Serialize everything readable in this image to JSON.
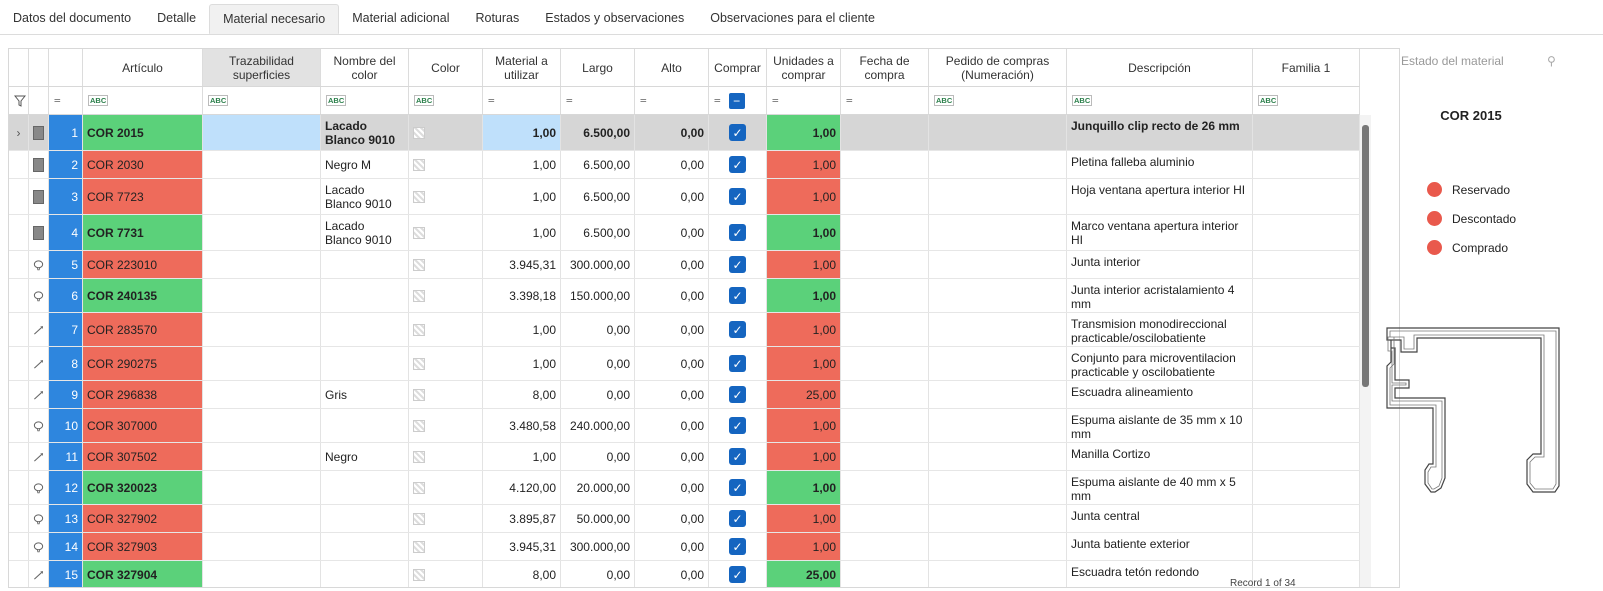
{
  "tabs": [
    "Datos del documento",
    "Detalle",
    "Material necesario",
    "Material adicional",
    "Roturas",
    "Estados y observaciones",
    "Observaciones para el cliente"
  ],
  "columns": {
    "articulo": "Artículo",
    "trazabilidad": "Trazabilidad superficies",
    "nombre_color": "Nombre del color",
    "color": "Color",
    "material": "Material a utilizar",
    "largo": "Largo",
    "alto": "Alto",
    "comprar": "Comprar",
    "unidades": "Unidades a comprar",
    "fecha": "Fecha de compra",
    "pedido": "Pedido de compras (Numeración)",
    "descripcion": "Descripción",
    "familia": "Familia 1"
  },
  "filter": {
    "eq": "=",
    "abc": "ABC"
  },
  "rows": [
    {
      "n": "1",
      "art": "COR 2015",
      "nc": "Lacado Blanco 9010",
      "mat": "1,00",
      "largo": "6.500,00",
      "alto": "0,00",
      "uni": "1,00",
      "desc": "Junquillo clip recto de 26 mm",
      "st": "green",
      "icon": "square"
    },
    {
      "n": "2",
      "art": "COR 2030",
      "nc": "Negro M",
      "mat": "1,00",
      "largo": "6.500,00",
      "alto": "0,00",
      "uni": "1,00",
      "desc": "Pletina falleba aluminio",
      "st": "red",
      "icon": "square"
    },
    {
      "n": "3",
      "art": "COR 7723",
      "nc": "Lacado Blanco 9010",
      "mat": "1,00",
      "largo": "6.500,00",
      "alto": "0,00",
      "uni": "1,00",
      "desc": "Hoja ventana apertura interior HI",
      "st": "red",
      "icon": "square"
    },
    {
      "n": "4",
      "art": "COR 7731",
      "nc": "Lacado Blanco 9010",
      "mat": "1,00",
      "largo": "6.500,00",
      "alto": "0,00",
      "uni": "1,00",
      "desc": "Marco ventana apertura interior HI",
      "st": "green",
      "icon": "square"
    },
    {
      "n": "5",
      "art": "COR 223010",
      "nc": "",
      "mat": "3.945,31",
      "largo": "300.000,00",
      "alto": "0,00",
      "uni": "1,00",
      "desc": "Junta interior",
      "st": "red",
      "icon": "ring"
    },
    {
      "n": "6",
      "art": "COR 240135",
      "nc": "",
      "mat": "3.398,18",
      "largo": "150.000,00",
      "alto": "0,00",
      "uni": "1,00",
      "desc": "Junta interior acristalamiento 4 mm",
      "st": "green",
      "icon": "ring"
    },
    {
      "n": "7",
      "art": "COR 283570",
      "nc": "",
      "mat": "1,00",
      "largo": "0,00",
      "alto": "0,00",
      "uni": "1,00",
      "desc": "Transmision monodireccional practicable/oscilobatiente",
      "st": "red",
      "icon": "tool"
    },
    {
      "n": "8",
      "art": "COR 290275",
      "nc": "",
      "mat": "1,00",
      "largo": "0,00",
      "alto": "0,00",
      "uni": "1,00",
      "desc": "Conjunto para microventilacion practicable y oscilobatiente",
      "st": "red",
      "icon": "tool"
    },
    {
      "n": "9",
      "art": "COR 296838",
      "nc": "Gris",
      "mat": "8,00",
      "largo": "0,00",
      "alto": "0,00",
      "uni": "25,00",
      "desc": "Escuadra alineamiento",
      "st": "red",
      "icon": "tool"
    },
    {
      "n": "10",
      "art": "COR 307000",
      "nc": "",
      "mat": "3.480,58",
      "largo": "240.000,00",
      "alto": "0,00",
      "uni": "1,00",
      "desc": "Espuma aislante de 35 mm x 10 mm",
      "st": "red",
      "icon": "ring"
    },
    {
      "n": "11",
      "art": "COR 307502",
      "nc": "Negro",
      "mat": "1,00",
      "largo": "0,00",
      "alto": "0,00",
      "uni": "1,00",
      "desc": "Manilla Cortizo",
      "st": "red",
      "icon": "tool"
    },
    {
      "n": "12",
      "art": "COR 320023",
      "nc": "",
      "mat": "4.120,00",
      "largo": "20.000,00",
      "alto": "0,00",
      "uni": "1,00",
      "desc": "Espuma aislante de 40 mm x 5 mm",
      "st": "green",
      "icon": "ring"
    },
    {
      "n": "13",
      "art": "COR 327902",
      "nc": "",
      "mat": "3.895,87",
      "largo": "50.000,00",
      "alto": "0,00",
      "uni": "1,00",
      "desc": "Junta central",
      "st": "red",
      "icon": "ring"
    },
    {
      "n": "14",
      "art": "COR 327903",
      "nc": "",
      "mat": "3.945,31",
      "largo": "300.000,00",
      "alto": "0,00",
      "uni": "1,00",
      "desc": "Junta batiente exterior",
      "st": "red",
      "icon": "ring"
    },
    {
      "n": "15",
      "art": "COR 327904",
      "nc": "",
      "mat": "8,00",
      "largo": "0,00",
      "alto": "0,00",
      "uni": "25,00",
      "desc": "Escuadra tetón redondo",
      "st": "green",
      "icon": "tool"
    }
  ],
  "panel": {
    "title": "Estado del material",
    "code": "COR 2015",
    "legend": [
      "Reservado",
      "Descontado",
      "Comprado"
    ]
  },
  "footer": "Record 1 of 34",
  "colors": {
    "green": "#5bd17a",
    "red": "#ee6b5b",
    "blue": "#2e86de",
    "check": "#1565c0"
  }
}
